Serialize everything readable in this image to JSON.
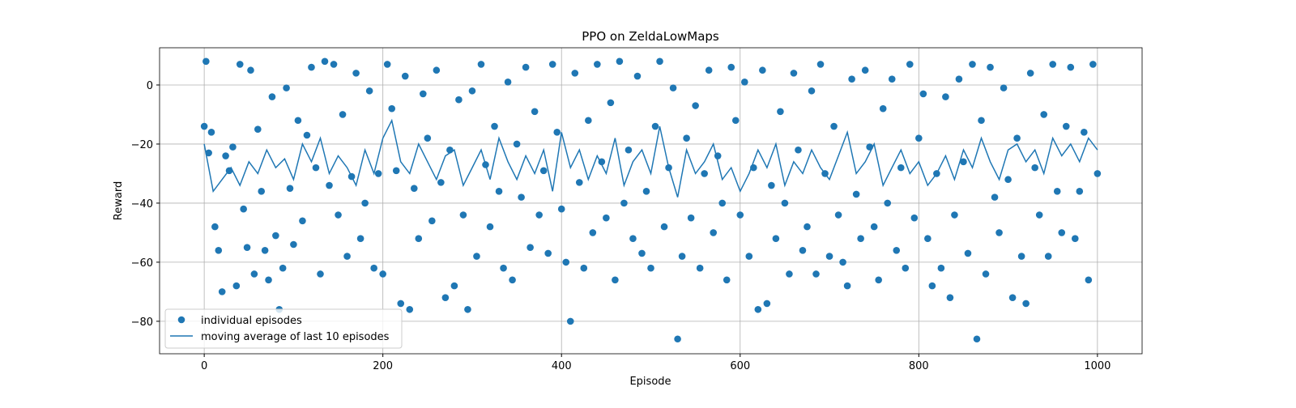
{
  "chart_data": {
    "type": "scatter-line",
    "title": "PPO on ZeldaLowMaps",
    "x_label": "Episode",
    "y_label": "Reward",
    "xlim": [
      -50,
      1050
    ],
    "ylim": [
      -91,
      12.6
    ],
    "xticks": [
      0,
      200,
      400,
      600,
      800,
      1000
    ],
    "yticks": [
      {
        "value": -80,
        "label": "−80"
      },
      {
        "value": -60,
        "label": "−60"
      },
      {
        "value": -40,
        "label": "−40"
      },
      {
        "value": -20,
        "label": "−20"
      },
      0
    ],
    "grid": true,
    "legend": "lower left",
    "series": [
      {
        "name": "individual episodes",
        "kind": "scatter",
        "color": "#1f77b4",
        "x": [
          0,
          2,
          5,
          8,
          12,
          16,
          20,
          24,
          28,
          32,
          36,
          40,
          44,
          48,
          52,
          56,
          60,
          64,
          68,
          72,
          76,
          80,
          84,
          88,
          92,
          96,
          100,
          105,
          110,
          115,
          120,
          125,
          130,
          135,
          140,
          145,
          150,
          155,
          160,
          165,
          170,
          175,
          180,
          185,
          190,
          195,
          200,
          205,
          210,
          215,
          220,
          225,
          230,
          235,
          240,
          245,
          250,
          255,
          260,
          265,
          270,
          275,
          280,
          285,
          290,
          295,
          300,
          305,
          310,
          315,
          320,
          325,
          330,
          335,
          340,
          345,
          350,
          355,
          360,
          365,
          370,
          375,
          380,
          385,
          390,
          395,
          400,
          405,
          410,
          415,
          420,
          425,
          430,
          435,
          440,
          445,
          450,
          455,
          460,
          465,
          470,
          475,
          480,
          485,
          490,
          495,
          500,
          505,
          510,
          515,
          520,
          525,
          530,
          535,
          540,
          545,
          550,
          555,
          560,
          565,
          570,
          575,
          580,
          585,
          590,
          595,
          600,
          605,
          610,
          615,
          620,
          625,
          630,
          635,
          640,
          645,
          650,
          655,
          660,
          665,
          670,
          675,
          680,
          685,
          690,
          695,
          700,
          705,
          710,
          715,
          720,
          725,
          730,
          735,
          740,
          745,
          750,
          755,
          760,
          765,
          770,
          775,
          780,
          785,
          790,
          795,
          800,
          805,
          810,
          815,
          820,
          825,
          830,
          835,
          840,
          845,
          850,
          855,
          860,
          865,
          870,
          875,
          880,
          885,
          890,
          895,
          900,
          905,
          910,
          915,
          920,
          925,
          930,
          935,
          940,
          945,
          950,
          955,
          960,
          965,
          970,
          975,
          980,
          985,
          990,
          995,
          1000
        ],
        "values": [
          -14,
          8,
          -23,
          -16,
          -48,
          -56,
          -70,
          -24,
          -29,
          -21,
          -68,
          7,
          -42,
          -55,
          5,
          -64,
          -15,
          -36,
          -56,
          -66,
          -4,
          -51,
          -76,
          -62,
          -1,
          -35,
          -54,
          -12,
          -46,
          -17,
          6,
          -28,
          -64,
          8,
          -34,
          7,
          -44,
          -10,
          -58,
          -31,
          4,
          -52,
          -40,
          -2,
          -62,
          -30,
          -64,
          7,
          -8,
          -29,
          -74,
          3,
          -76,
          -35,
          -52,
          -3,
          -18,
          -46,
          5,
          -33,
          -72,
          -22,
          -68,
          -5,
          -44,
          -76,
          -2,
          -58,
          7,
          -27,
          -48,
          -14,
          -36,
          -62,
          1,
          -66,
          -20,
          -38,
          6,
          -55,
          -9,
          -44,
          -29,
          -57,
          7,
          -16,
          -42,
          -60,
          -80,
          4,
          -33,
          -62,
          -12,
          -50,
          7,
          -26,
          -45,
          -6,
          -66,
          8,
          -40,
          -22,
          -52,
          3,
          -57,
          -36,
          -62,
          -14,
          8,
          -48,
          -28,
          -1,
          -86,
          -58,
          -18,
          -45,
          -7,
          -62,
          -30,
          5,
          -50,
          -24,
          -40,
          -66,
          6,
          -12,
          -44,
          1,
          -58,
          -28,
          -76,
          5,
          -74,
          -34,
          -52,
          -9,
          -40,
          -64,
          4,
          -22,
          -56,
          -48,
          -2,
          -64,
          7,
          -30,
          -58,
          -14,
          -44,
          -60,
          -68,
          2,
          -37,
          -52,
          5,
          -21,
          -48,
          -66,
          -8,
          -40,
          2,
          -56,
          -28,
          -62,
          7,
          -45,
          -18,
          -3,
          -52,
          -68,
          -30,
          -62,
          -4,
          -72,
          -44,
          2,
          -26,
          -57,
          7,
          -86,
          -12,
          -64,
          6,
          -38,
          -50,
          -1,
          -32,
          -72,
          -18,
          -58,
          -74,
          4,
          -28,
          -44,
          -10,
          -58,
          7,
          -36,
          -50,
          -14,
          6,
          -52,
          -36,
          -16,
          -66,
          7,
          -30
        ]
      },
      {
        "name": "moving average of last 10 episodes",
        "kind": "line",
        "color": "#1f77b4",
        "x": [
          0,
          10,
          20,
          30,
          40,
          50,
          60,
          70,
          80,
          90,
          100,
          110,
          120,
          130,
          140,
          150,
          160,
          170,
          180,
          190,
          200,
          210,
          220,
          230,
          240,
          250,
          260,
          270,
          280,
          290,
          300,
          310,
          320,
          330,
          340,
          350,
          360,
          370,
          380,
          390,
          400,
          410,
          420,
          430,
          440,
          450,
          460,
          470,
          480,
          490,
          500,
          510,
          520,
          530,
          540,
          550,
          560,
          570,
          580,
          590,
          600,
          610,
          620,
          630,
          640,
          650,
          660,
          670,
          680,
          690,
          700,
          710,
          720,
          730,
          740,
          750,
          760,
          770,
          780,
          790,
          800,
          810,
          820,
          830,
          840,
          850,
          860,
          870,
          880,
          890,
          900,
          910,
          920,
          930,
          940,
          950,
          960,
          970,
          980,
          990,
          1000
        ],
        "values": [
          -20,
          -36,
          -32,
          -28,
          -34,
          -26,
          -30,
          -22,
          -28,
          -25,
          -32,
          -20,
          -26,
          -18,
          -30,
          -24,
          -28,
          -34,
          -22,
          -30,
          -18,
          -12,
          -26,
          -30,
          -20,
          -26,
          -32,
          -24,
          -22,
          -34,
          -28,
          -22,
          -32,
          -18,
          -26,
          -32,
          -24,
          -30,
          -22,
          -36,
          -16,
          -28,
          -22,
          -32,
          -24,
          -30,
          -18,
          -34,
          -26,
          -22,
          -30,
          -14,
          -28,
          -38,
          -22,
          -30,
          -26,
          -20,
          -32,
          -28,
          -36,
          -30,
          -22,
          -28,
          -20,
          -34,
          -26,
          -30,
          -22,
          -28,
          -32,
          -24,
          -16,
          -30,
          -26,
          -20,
          -34,
          -28,
          -22,
          -30,
          -26,
          -34,
          -30,
          -24,
          -32,
          -22,
          -28,
          -18,
          -26,
          -32,
          -22,
          -20,
          -26,
          -22,
          -30,
          -18,
          -24,
          -20,
          -26,
          -18,
          -22
        ]
      }
    ]
  }
}
